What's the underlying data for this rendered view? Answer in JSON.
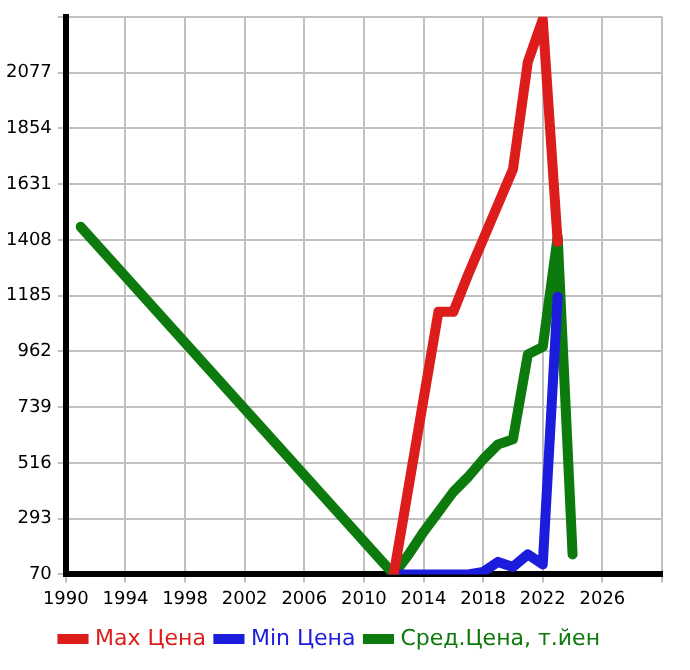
{
  "chart_data": {
    "type": "line",
    "series": [
      {
        "name": "Max Цена",
        "color": "#dd1c1c",
        "x": [
          2012,
          2013,
          2014,
          2015,
          2016,
          2017,
          2018,
          2019,
          2020,
          2021,
          2022,
          2023
        ],
        "values": [
          70,
          420,
          770,
          1120,
          1120,
          1270,
          1410,
          1550,
          1690,
          2120,
          2290,
          1400
        ]
      },
      {
        "name": "Min Цена",
        "color": "#1c1cdd",
        "x": [
          2012,
          2013,
          2014,
          2015,
          2016,
          2017,
          2018,
          2019,
          2020,
          2021,
          2022,
          2023
        ],
        "values": [
          70,
          70,
          70,
          70,
          70,
          70,
          80,
          120,
          100,
          150,
          110,
          1180
        ]
      },
      {
        "name": "Сред.Цена, т.йен",
        "color": "#0c7a0c",
        "x": [
          1991,
          2012,
          2013,
          2014,
          2015,
          2016,
          2017,
          2018,
          2019,
          2020,
          2021,
          2022,
          2023,
          2024
        ],
        "values": [
          1460,
          70,
          150,
          240,
          320,
          400,
          460,
          530,
          590,
          610,
          950,
          980,
          1420,
          150
        ]
      }
    ],
    "xlim": [
      1990,
      2030
    ],
    "xticks": [
      1990,
      1994,
      1998,
      2002,
      2006,
      2010,
      2014,
      2018,
      2022,
      2026,
      {
        "value": 2030,
        "label": null
      }
    ],
    "ylim": [
      70,
      2300
    ],
    "yticks": [
      70,
      293,
      516,
      739,
      962,
      1185,
      1408,
      1631,
      1854,
      2077,
      {
        "value": 2300,
        "label": null
      }
    ],
    "grid": true,
    "legend": "bottom",
    "marker": "none",
    "line_style": "solid"
  }
}
